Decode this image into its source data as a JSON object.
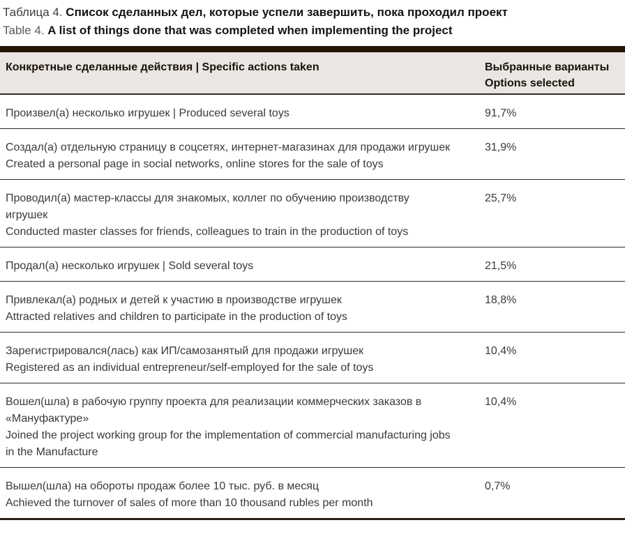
{
  "caption": {
    "ru_prefix": "Таблица 4.",
    "ru_text": "Список сделанных дел, которые успели завершить, пока проходил проект",
    "en_prefix": "Table 4.",
    "en_text": "A list of things done that was completed when implementing the project"
  },
  "table": {
    "header": {
      "col1": "Конкретные сделанные действия  |  Specific actions taken",
      "col2_line1": "Выбранные варианты",
      "col2_line2": "Options selected"
    },
    "rows": [
      {
        "lines": [
          "Произвел(а) несколько игрушек  |  Produced several toys"
        ],
        "value": "91,7%"
      },
      {
        "lines": [
          "Создал(а) отдельную страницу в соцсетях, интернет-магазинах для продажи игрушек",
          "Created a personal page in social networks, online stores for the sale of toys"
        ],
        "value": "31,9%"
      },
      {
        "lines": [
          "Проводил(а) мастер-классы для знакомых, коллег по обучению производству игрушек",
          "Conducted master classes for friends, colleagues to train in the production of toys"
        ],
        "value": "25,7%"
      },
      {
        "lines": [
          "Продал(а) несколько игрушек  |  Sold several toys"
        ],
        "value": "21,5%"
      },
      {
        "lines": [
          "Привлекал(а) родных и детей к участию в производстве игрушек",
          "Attracted relatives and children to participate in the production of toys"
        ],
        "value": "18,8%"
      },
      {
        "lines": [
          "Зарегистрировался(лась) как ИП/самозанятый для продажи игрушек",
          "Registered as an individual entrepreneur/self-employed for the sale of toys"
        ],
        "value": "10,4%"
      },
      {
        "lines": [
          "Вошел(шла) в рабочую группу проекта для реализации коммерческих заказов в «Мануфактуре»",
          "Joined the project working group for the implementation of commercial manufacturing jobs in the Manufacture"
        ],
        "value": "10,4%"
      },
      {
        "lines": [
          "Вышел(шла) на обороты продаж более 10 тыс. руб. в месяц",
          "Achieved the turnover of sales of more than 10 thousand rubles per month"
        ],
        "value": "0,7%"
      }
    ]
  },
  "colors": {
    "accent_dark": "#241405",
    "header_bg": "#e9e6e3",
    "rule": "#2b2b2b",
    "text": "#3a3a3a",
    "heading_text": "#1b120a"
  }
}
